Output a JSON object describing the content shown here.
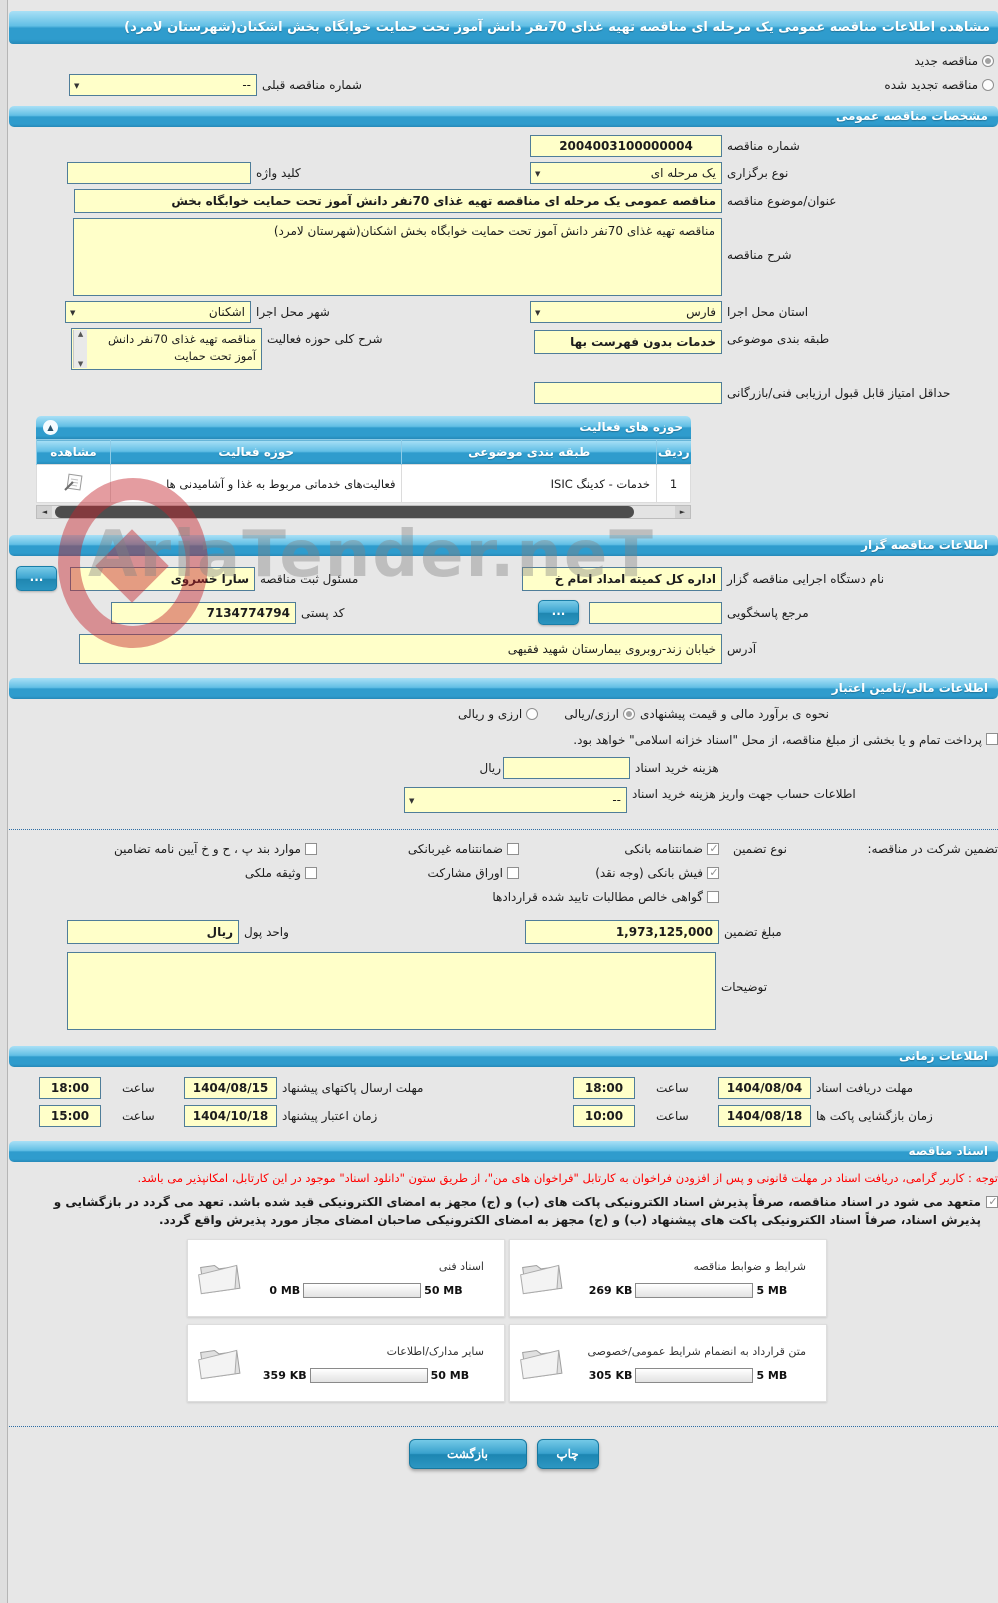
{
  "page_title": "مشاهده اطلاعات مناقصه عمومی یک مرحله ای مناقصه تهیه غذای 70نفر دانش آموز تحت حمایت خوابگاه بخش اشکنان(شهرستان لامرد)",
  "watermark": "AriaTender.neT",
  "top": {
    "radio_new": "مناقصه جدید",
    "radio_new_selected": true,
    "radio_renewed": "مناقصه تجدید شده",
    "radio_renewed_selected": false,
    "prev_number_label": "شماره مناقصه قبلی",
    "prev_number_value": "--"
  },
  "general": {
    "header": "مشخصات مناقصه عمومی",
    "tender_number_label": "شماره مناقصه",
    "tender_number": "2004003100000004",
    "type_label": "نوع برگزاری",
    "type_value": "یک مرحله ای",
    "keyword_label": "کلید واژه",
    "keyword_value": "",
    "title_label": "عنوان/موضوع مناقصه",
    "title_value": "مناقصه عمومی یک مرحله ای مناقصه تهیه غذای 70نفر دانش آموز تحت حمایت خوابگاه بخش",
    "desc_label": "شرح مناقصه",
    "desc_value": "مناقصه تهیه غذای 70نفر دانش آموز تحت حمایت خوابگاه بخش اشکنان(شهرستان لامرد)",
    "province_label": "استان محل اجرا",
    "province": "فارس",
    "city_label": "شهر محل اجرا",
    "city": "اشکنان",
    "category_label": "طبقه بندی موضوعی",
    "category": "خدمات بدون فهرست بها",
    "activity_desc_label": "شرح کلی حوزه فعالیت",
    "activity_desc": "مناقصه تهیه غذای 70نفر دانش آموز تحت حمایت",
    "min_score_label": "حداقل امتیاز قابل قبول ارزیابی فنی/بازرگانی",
    "min_score_value": ""
  },
  "activity_panel": {
    "header": "حوزه های فعالیت",
    "collapse_icon": "▲",
    "columns": [
      "ردیف",
      "طبقه بندی موضوعی",
      "حوزه فعالیت",
      "مشاهده"
    ],
    "rows": [
      {
        "row": "1",
        "category": "خدمات - کدینگ ISIC",
        "field": "فعالیت‌های خدماتی مربوط به غذا و آشامیدنی ها"
      }
    ]
  },
  "organizer": {
    "header": "اطلاعات مناقصه گزار",
    "agency_label": "نام دستگاه اجرایی مناقصه گزار",
    "agency": "اداره کل کمیته امداد امام خ",
    "registrar_label": "مسئول ثبت مناقصه",
    "registrar": "سارا خسروی",
    "more_button": "...",
    "contact_label": "مرجع پاسخگویی",
    "contact_value": "",
    "postal_label": "کد پستی",
    "postal_code": "7134774794",
    "address_label": "آدرس",
    "address": "خیابان زند-روبروی بیمارستان شهید فقیهی"
  },
  "financial": {
    "header": "اطلاعات مالی/تامین اعتبار",
    "estimate_label": "نحوه ی برآورد مالی و قیمت پیشنهادی",
    "option_rial": "ارزی/ریالی",
    "option_rial_selected": true,
    "option_both": "ارزی و ریالی",
    "option_both_selected": false,
    "treasury_note": "پرداخت تمام و یا بخشی از مبلغ مناقصه، از محل \"اسناد خزانه اسلامی\" خواهد بود.",
    "treasury_checked": false,
    "doc_fee_label": "هزینه خرید اسناد",
    "doc_fee_value": "",
    "rial_label": "ریال",
    "account_label": "اطلاعات حساب جهت واریز هزینه خرید اسناد",
    "account_value": "--"
  },
  "guarantee": {
    "section_label": "تضمین شرکت در مناقصه:",
    "type_label": "نوع تضمین",
    "options": [
      {
        "label": "ضمانتنامه بانکی",
        "checked": true
      },
      {
        "label": "ضمانتنامه غیربانکی",
        "checked": false
      },
      {
        "label": "موارد بند پ ، ح و خ آیین نامه تضامین",
        "checked": false
      },
      {
        "label": "فیش بانکی (وجه نقد)",
        "checked": true
      },
      {
        "label": "اوراق مشارکت",
        "checked": false
      },
      {
        "label": "وثیقه ملکی",
        "checked": false
      },
      {
        "label": "گواهی خالص مطالبات تایید شده قراردادها",
        "checked": false
      }
    ],
    "amount_label": "مبلغ تضمین",
    "amount": "1,973,125,000",
    "currency_label": "واحد پول",
    "currency": "ریال",
    "notes_label": "توضیحات",
    "notes_value": ""
  },
  "schedule": {
    "header": "اطلاعات زمانی",
    "items": [
      {
        "label": "مهلت دریافت اسناد",
        "date": "1404/08/04",
        "time_label": "ساعت",
        "time": "18:00"
      },
      {
        "label": "مهلت ارسال پاکتهای پیشنهاد",
        "date": "1404/08/15",
        "time_label": "ساعت",
        "time": "18:00"
      },
      {
        "label": "زمان بازگشایی پاکت ها",
        "date": "1404/08/18",
        "time_label": "ساعت",
        "time": "10:00"
      },
      {
        "label": "زمان اعتبار پیشنهاد",
        "date": "1404/10/18",
        "time_label": "ساعت",
        "time": "15:00"
      }
    ]
  },
  "documents": {
    "header": "اسناد مناقصه",
    "notice": "توجه : کاربر گرامی، دریافت اسناد در مهلت قانونی و پس از افزودن فراخوان به کارتابل \"فراخوان های من\"، از طریق ستون \"دانلود اسناد\" موجود در این کارتابل، امکانپذیر می باشد.",
    "commitment_checked": true,
    "commitment": "متعهد می شود در اسناد مناقصه، صرفاً پذیرش اسناد الکترونیکی پاکت های (ب) و (ج) مجهز به امضای الکترونیکی قید شده باشد. تعهد می گردد در بازگشایی و پذیرش اسناد، صرفاً اسناد الکترونیکی پاکت های پیشنهاد (ب) و (ج) مجهز به امضای الکترونیکی صاحبان امضای مجاز مورد پذیرش واقع گردد.",
    "files": [
      {
        "title": "شرایط و ضوابط مناقصه",
        "size": "269 KB",
        "max": "5 MB",
        "fill": 7
      },
      {
        "title": "اسناد فنی",
        "size": "0 MB",
        "max": "50 MB",
        "fill": 0
      },
      {
        "title": "متن قرارداد به انضمام شرایط عمومی/خصوصی",
        "size": "305 KB",
        "max": "5 MB",
        "fill": 8
      },
      {
        "title": "سایر مدارک/اطلاعات",
        "size": "359 KB",
        "max": "50 MB",
        "fill": 3
      }
    ]
  },
  "footer": {
    "print": "چاپ",
    "back": "بازگشت"
  }
}
